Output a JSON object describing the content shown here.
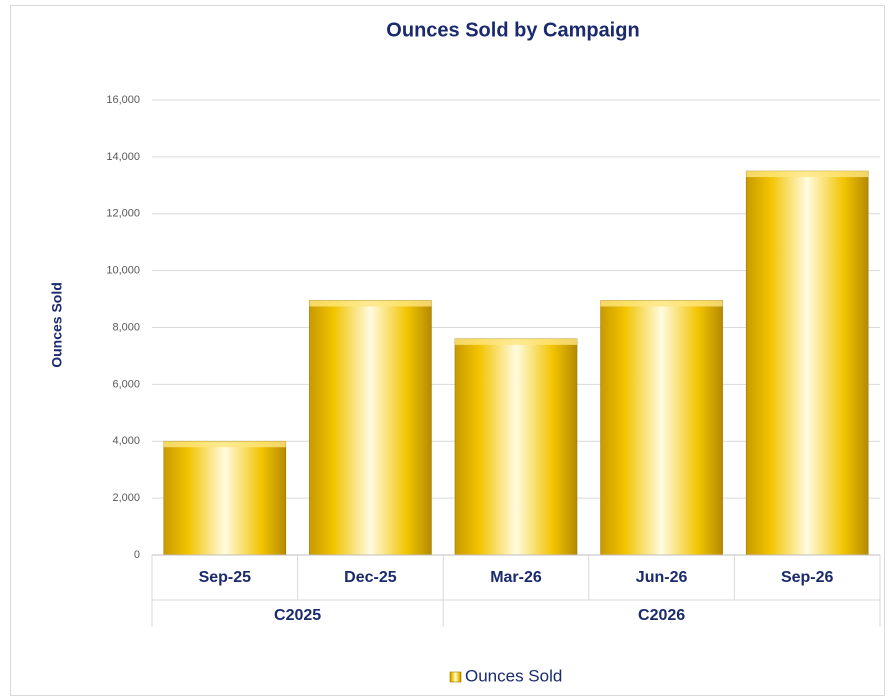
{
  "chart_data": {
    "type": "bar",
    "title": "Ounces Sold by Campaign",
    "y_label": "Ounces Sold",
    "groups": [
      {
        "name": "C2025",
        "categories": [
          "Sep-25",
          "Dec-25"
        ]
      },
      {
        "name": "C2026",
        "categories": [
          "Mar-26",
          "Jun-26",
          "Sep-26"
        ]
      }
    ],
    "series": [
      {
        "name": "Ounces Sold",
        "color": "#f5c800",
        "values": [
          4000,
          8950,
          7600,
          8950,
          13500
        ]
      }
    ],
    "ylim": [
      0,
      16000
    ],
    "yticks": [
      0,
      {
        "value": 2000,
        "label": "2,000"
      },
      {
        "value": 4000,
        "label": "4,000"
      },
      {
        "value": 6000,
        "label": "6,000"
      },
      {
        "value": 8000,
        "label": "8,000"
      },
      {
        "value": 10000,
        "label": "10,000"
      },
      {
        "value": 12000,
        "label": "12,000"
      },
      {
        "value": 14000,
        "label": "14,000"
      },
      {
        "value": 16000,
        "label": "16,000"
      }
    ],
    "grid": true,
    "legend": "bottom"
  }
}
